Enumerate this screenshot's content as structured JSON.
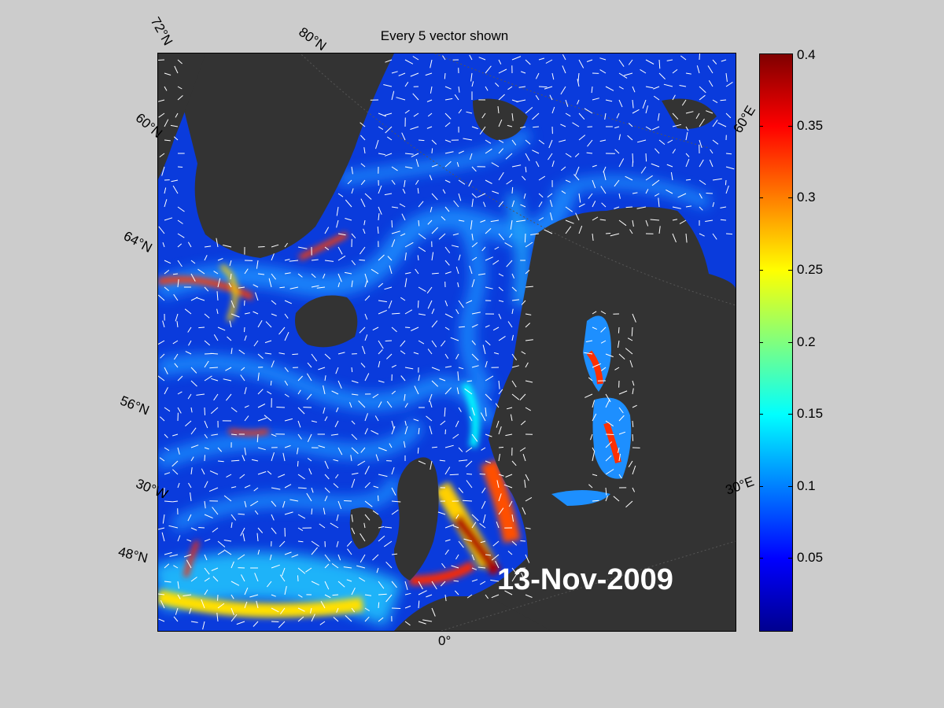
{
  "title": "Every 5 vector shown",
  "date": "13-Nov-2009",
  "lat_labels": [
    "72°N",
    "80°N",
    "60°N",
    "64°N",
    "56°N",
    "30°W",
    "48°N"
  ],
  "lon_labels": [
    "0°",
    "60°E",
    "30°E"
  ],
  "colorbar": {
    "min": 0,
    "max": 0.4,
    "colormap": "jet",
    "ticks": [
      "0.4",
      "0.35",
      "0.3",
      "0.25",
      "0.2",
      "0.15",
      "0.1",
      "0.05"
    ]
  },
  "colors": {
    "land": "#333333",
    "ocean_low": "#0a3bdc",
    "ocean_mid": "#19a0ff",
    "ocean_high": "#ff2a00",
    "vectors": "#ffffff",
    "background": "#cccccc"
  }
}
